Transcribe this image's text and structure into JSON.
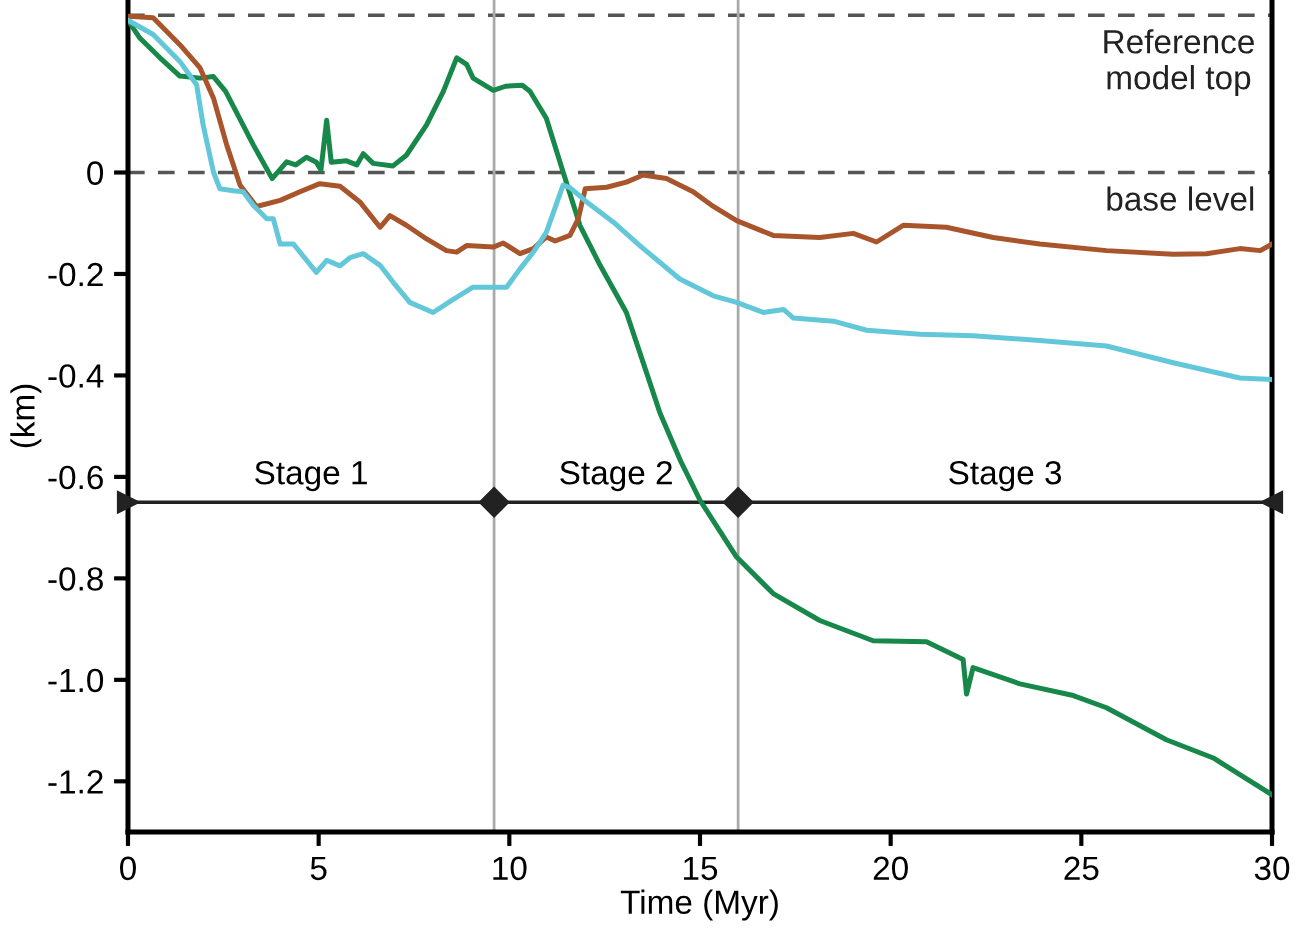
{
  "chart_data": {
    "type": "line",
    "xlabel": "Time (Myr)",
    "ylabel": "(km)",
    "xlim": [
      0,
      30
    ],
    "xticks": [
      0,
      5,
      10,
      15,
      20,
      25,
      30
    ],
    "ylim": [
      -1.3,
      0.34
    ],
    "yticks": [
      {
        "value": 0,
        "label": "0"
      },
      -0.2,
      -0.4,
      -0.6,
      -0.8,
      {
        "value": -1.0,
        "label": "-1.0"
      },
      -1.2
    ],
    "grid": false,
    "marker": "none",
    "line_style": "solid",
    "series": [
      {
        "color": "#17884a",
        "x": [
          0,
          0.31,
          0.84,
          1.36,
          1.89,
          2.24,
          2.56,
          3.29,
          3.78,
          4.16,
          4.4,
          4.68,
          4.94,
          5.06,
          5.21,
          5.33,
          5.73,
          6.0,
          6.17,
          6.43,
          6.95,
          7.3,
          7.83,
          8.27,
          8.62,
          8.88,
          9.05,
          9.58,
          9.9,
          10.34,
          10.54,
          10.97,
          11.41,
          11.85,
          12.38,
          13.07,
          13.6,
          13.95,
          14.5,
          15.0,
          15.96,
          16.92,
          18.14,
          19.54,
          20.94,
          21.9,
          21.99,
          22.16,
          23.39,
          24.79,
          25.66,
          27.23,
          28.46,
          29.99
        ],
        "values": [
          0.3,
          0.265,
          0.226,
          0.19,
          0.186,
          0.189,
          0.16,
          0.054,
          -0.012,
          0.021,
          0.015,
          0.03,
          0.02,
          0.005,
          0.103,
          0.02,
          0.023,
          0.015,
          0.037,
          0.018,
          0.013,
          0.034,
          0.094,
          0.16,
          0.226,
          0.213,
          0.186,
          0.162,
          0.17,
          0.172,
          0.16,
          0.107,
          0.001,
          -0.104,
          -0.183,
          -0.276,
          -0.395,
          -0.474,
          -0.57,
          -0.646,
          -0.758,
          -0.83,
          -0.883,
          -0.923,
          -0.925,
          -0.96,
          -1.028,
          -0.976,
          -1.008,
          -1.031,
          -1.055,
          -1.118,
          -1.154,
          -1.226
        ]
      },
      {
        "color": "#a9552c",
        "x": [
          0,
          0.66,
          1.36,
          1.89,
          2.24,
          2.59,
          2.94,
          3.37,
          3.99,
          4.51,
          5.03,
          5.56,
          6.08,
          6.61,
          6.87,
          7.3,
          7.83,
          8.35,
          8.62,
          8.88,
          9.58,
          9.84,
          10.28,
          10.63,
          10.97,
          11.2,
          11.59,
          11.81,
          11.99,
          12.55,
          13.07,
          13.51,
          14.12,
          14.82,
          15.35,
          15.96,
          16.92,
          18.14,
          19.02,
          19.63,
          20.33,
          21.46,
          22.69,
          23.91,
          25.66,
          27.41,
          28.28,
          29.16,
          29.69,
          30
        ],
        "values": [
          0.308,
          0.305,
          0.252,
          0.206,
          0.147,
          0.054,
          -0.025,
          -0.067,
          -0.055,
          -0.038,
          -0.022,
          -0.027,
          -0.058,
          -0.108,
          -0.085,
          -0.104,
          -0.131,
          -0.154,
          -0.157,
          -0.144,
          -0.147,
          -0.139,
          -0.16,
          -0.15,
          -0.127,
          -0.135,
          -0.124,
          -0.091,
          -0.032,
          -0.029,
          -0.019,
          -0.005,
          -0.012,
          -0.038,
          -0.067,
          -0.095,
          -0.124,
          -0.128,
          -0.12,
          -0.137,
          -0.104,
          -0.108,
          -0.128,
          -0.141,
          -0.154,
          -0.161,
          -0.16,
          -0.15,
          -0.154,
          -0.141
        ]
      },
      {
        "color": "#63c7da",
        "x": [
          0,
          0.66,
          1.36,
          1.8,
          1.97,
          2.24,
          2.41,
          2.76,
          3.02,
          3.29,
          3.64,
          3.81,
          3.99,
          4.34,
          4.94,
          5.21,
          5.56,
          5.82,
          6.17,
          6.61,
          6.96,
          7.39,
          8.0,
          8.53,
          9.05,
          9.93,
          10.28,
          10.63,
          10.97,
          11.41,
          11.59,
          12.03,
          12.73,
          13.42,
          14.47,
          15.35,
          15.96,
          16.66,
          17.19,
          17.45,
          18.5,
          19.37,
          20.77,
          22.16,
          23.91,
          25.66,
          27.41,
          29.16,
          30
        ],
        "values": [
          0.3,
          0.272,
          0.219,
          0.173,
          0.094,
          0.001,
          -0.032,
          -0.036,
          -0.038,
          -0.065,
          -0.091,
          -0.091,
          -0.141,
          -0.141,
          -0.197,
          -0.173,
          -0.184,
          -0.168,
          -0.16,
          -0.183,
          -0.217,
          -0.256,
          -0.276,
          -0.25,
          -0.226,
          -0.226,
          -0.19,
          -0.157,
          -0.118,
          -0.025,
          -0.03,
          -0.058,
          -0.098,
          -0.144,
          -0.21,
          -0.243,
          -0.256,
          -0.276,
          -0.27,
          -0.287,
          -0.293,
          -0.311,
          -0.319,
          -0.322,
          -0.331,
          -0.342,
          -0.375,
          -0.405,
          -0.408
        ]
      }
    ],
    "ref_lines": [
      {
        "axis": "y",
        "value": 0.31,
        "label": "Reference\nmodel top",
        "color": "#555555",
        "line_style": "dashed"
      },
      {
        "axis": "y",
        "value": 0,
        "label": "base level",
        "color": "#555555",
        "line_style": "dashed"
      },
      {
        "axis": "y",
        "value": -0.65,
        "color": "#222222",
        "line_style": "solid"
      },
      {
        "axis": "x",
        "value": 9.6,
        "color": "#aaaaaa",
        "line_style": "solid"
      },
      {
        "axis": "x",
        "value": 16,
        "color": "#aaaaaa",
        "line_style": "solid"
      }
    ],
    "annotations": [
      "Stage 1",
      "Stage 2",
      "Stage 3"
    ]
  }
}
